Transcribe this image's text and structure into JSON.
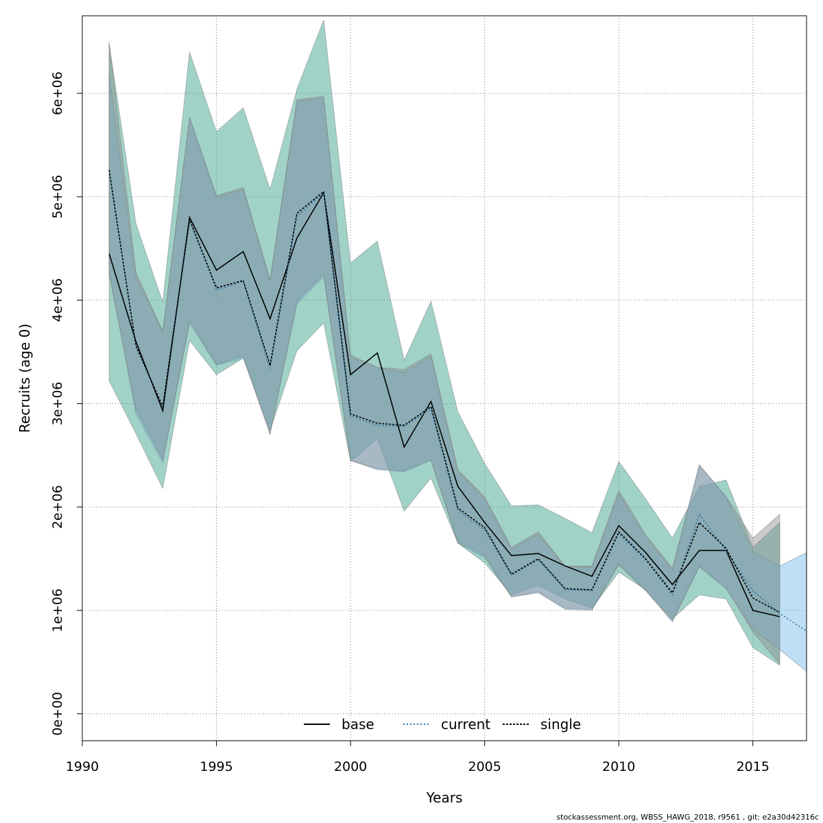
{
  "chart_data": {
    "type": "area",
    "xlabel": "Years",
    "ylabel": "Recruits (age 0)",
    "xlim": [
      1990,
      2017
    ],
    "ylim": [
      -260000,
      6750000
    ],
    "xticks": [
      1990,
      1995,
      2000,
      2005,
      2010,
      2015
    ],
    "yticks": [
      0,
      1000000,
      2000000,
      3000000,
      4000000,
      5000000,
      6000000
    ],
    "ytick_labels": [
      "0e+00",
      "1e+06",
      "2e+06",
      "3e+06",
      "4e+06",
      "5e+06",
      "6e+06"
    ],
    "grid": true,
    "legend_position": "bottom",
    "colors": {
      "base": "#8c8c8c",
      "current": "#6fb8e6",
      "single": "#2f9c84"
    },
    "series": [
      {
        "name": "base",
        "line_style": "solid",
        "x": [
          1991,
          1992,
          1993,
          1994,
          1995,
          1996,
          1997,
          1998,
          1999,
          2000,
          2001,
          2002,
          2003,
          2004,
          2005,
          2006,
          2007,
          2008,
          2009,
          2010,
          2011,
          2012,
          2013,
          2014,
          2015,
          2016
        ],
        "values": [
          4450000,
          3600000,
          2930000,
          4800000,
          4290000,
          4470000,
          3820000,
          4600000,
          5040000,
          3280000,
          3490000,
          2580000,
          3020000,
          2200000,
          1850000,
          1530000,
          1550000,
          1430000,
          1330000,
          1820000,
          1560000,
          1250000,
          1580000,
          1580000,
          1000000,
          940000
        ],
        "upper": [
          6500000,
          4270000,
          3700000,
          5770000,
          5010000,
          5090000,
          4200000,
          5940000,
          5970000,
          3470000,
          3350000,
          3330000,
          3480000,
          2360000,
          2100000,
          1610000,
          1760000,
          1430000,
          1430000,
          2160000,
          1730000,
          1410000,
          2400000,
          2100000,
          1700000,
          1930000
        ],
        "lower": [
          4250000,
          2940000,
          2460000,
          3800000,
          3380000,
          3460000,
          2700000,
          3990000,
          4250000,
          2450000,
          2370000,
          2350000,
          2460000,
          1660000,
          1530000,
          1130000,
          1180000,
          1020000,
          1010000,
          1450000,
          1200000,
          900000,
          1430000,
          1220000,
          790000,
          480000
        ]
      },
      {
        "name": "current",
        "line_style": "dotted",
        "x": [
          1991,
          1992,
          1993,
          1994,
          1995,
          1996,
          1997,
          1998,
          1999,
          2000,
          2001,
          2002,
          2003,
          2004,
          2005,
          2006,
          2007,
          2008,
          2009,
          2010,
          2011,
          2012,
          2013,
          2014,
          2015,
          2016,
          2017
        ],
        "values": [
          5250000,
          3550000,
          2970000,
          4770000,
          4100000,
          4180000,
          3340000,
          4810000,
          5040000,
          2880000,
          2790000,
          2780000,
          2950000,
          1970000,
          1780000,
          1340000,
          1490000,
          1200000,
          1190000,
          1740000,
          1490000,
          1150000,
          1930000,
          1580000,
          1190000,
          970000,
          800000
        ],
        "upper": [
          6180000,
          4230000,
          3690000,
          5760000,
          5000000,
          5070000,
          4180000,
          5920000,
          5960000,
          3450000,
          3350000,
          3300000,
          3460000,
          2340000,
          2080000,
          1590000,
          1740000,
          1420000,
          1420000,
          2130000,
          1720000,
          1390000,
          2410000,
          2100000,
          1570000,
          1430000,
          1560000
        ],
        "lower": [
          4280000,
          2900000,
          2430000,
          3780000,
          3370000,
          3440000,
          2710000,
          3960000,
          4230000,
          2450000,
          2360000,
          2340000,
          2450000,
          1650000,
          1510000,
          1130000,
          1170000,
          1010000,
          1000000,
          1440000,
          1190000,
          890000,
          1420000,
          1210000,
          820000,
          620000,
          410000
        ]
      },
      {
        "name": "single",
        "line_style": "dashed",
        "x": [
          1991,
          1992,
          1993,
          1994,
          1995,
          1996,
          1997,
          1998,
          1999,
          2000,
          2001,
          2002,
          2003,
          2004,
          2005,
          2006,
          2007,
          2008,
          2009,
          2010,
          2011,
          2012,
          2013,
          2014,
          2015,
          2016
        ],
        "values": [
          5260000,
          3560000,
          2970000,
          4780000,
          4120000,
          4190000,
          3370000,
          4840000,
          5050000,
          2900000,
          2810000,
          2790000,
          2970000,
          1990000,
          1800000,
          1350000,
          1500000,
          1210000,
          1200000,
          1760000,
          1500000,
          1170000,
          1850000,
          1600000,
          1120000,
          980000
        ],
        "upper": [
          6480000,
          4740000,
          3980000,
          6400000,
          5630000,
          5860000,
          5070000,
          6040000,
          6710000,
          4360000,
          4570000,
          3420000,
          3990000,
          2920000,
          2420000,
          2010000,
          2020000,
          1890000,
          1750000,
          2440000,
          2080000,
          1700000,
          2200000,
          2260000,
          1610000,
          1850000
        ],
        "lower": [
          3220000,
          2710000,
          2180000,
          3610000,
          3280000,
          3440000,
          2740000,
          3510000,
          3780000,
          2440000,
          2660000,
          1960000,
          2280000,
          1650000,
          1460000,
          1150000,
          1240000,
          1110000,
          1020000,
          1370000,
          1200000,
          920000,
          1150000,
          1110000,
          640000,
          470000
        ]
      }
    ]
  },
  "footer": "stockassessment.org, WBSS_HAWG_2018, r9561 , git: e2a30d42316c"
}
